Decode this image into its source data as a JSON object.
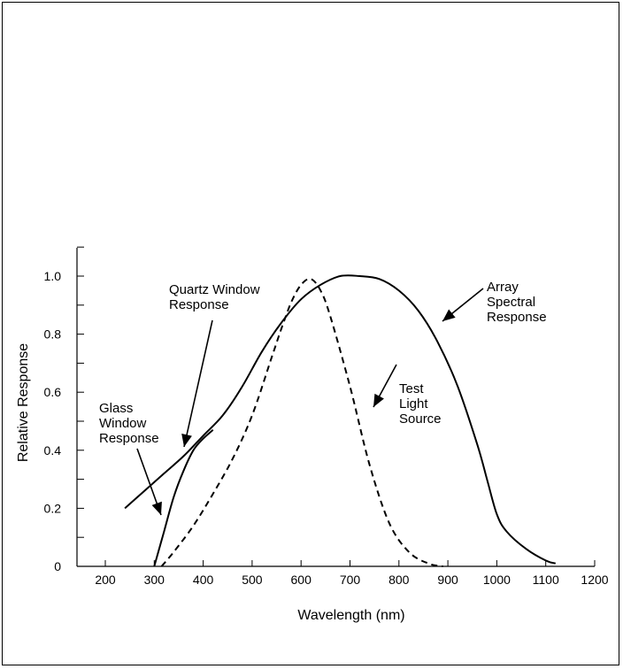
{
  "chart_data": {
    "type": "line",
    "title": "",
    "xlabel": "Wavelength (nm)",
    "ylabel": "Relative Response",
    "xlim": [
      150,
      1200
    ],
    "ylim": [
      0,
      1.1
    ],
    "x_ticks": [
      200,
      300,
      400,
      500,
      600,
      700,
      800,
      900,
      1000,
      1100,
      1200
    ],
    "y_ticks": [
      0,
      0.2,
      0.4,
      0.6,
      0.8,
      1.0
    ],
    "y_tick_labels": [
      "0",
      "0.2",
      "0.4",
      "0.6",
      "0.8",
      "1.0"
    ],
    "grid": false,
    "legend": "none",
    "series": [
      {
        "id": "quartz",
        "style": "solid",
        "x": [
          240,
          280,
          320,
          360,
          400,
          440,
          480,
          520,
          560,
          600,
          640,
          680,
          720,
          760,
          800,
          840,
          880,
          920,
          960,
          980,
          1000,
          1020,
          1060,
          1100,
          1120
        ],
        "y": [
          0.2,
          0.26,
          0.32,
          0.38,
          0.45,
          0.52,
          0.62,
          0.74,
          0.84,
          0.92,
          0.97,
          1.0,
          1.0,
          0.99,
          0.95,
          0.88,
          0.77,
          0.62,
          0.42,
          0.3,
          0.18,
          0.12,
          0.06,
          0.02,
          0.01
        ]
      },
      {
        "id": "glass",
        "style": "solid",
        "x": [
          300,
          320,
          340,
          360,
          380,
          400,
          420
        ],
        "y": [
          0.0,
          0.12,
          0.24,
          0.33,
          0.4,
          0.44,
          0.47
        ]
      },
      {
        "id": "test-light",
        "style": "dashed",
        "x": [
          315,
          340,
          380,
          420,
          460,
          500,
          540,
          560,
          580,
          600,
          620,
          640,
          660,
          700,
          740,
          780,
          820,
          860,
          890
        ],
        "y": [
          0.0,
          0.05,
          0.14,
          0.25,
          0.37,
          0.52,
          0.72,
          0.82,
          0.91,
          0.97,
          0.99,
          0.95,
          0.86,
          0.62,
          0.35,
          0.15,
          0.05,
          0.01,
          0.0
        ]
      }
    ],
    "annotations": [
      {
        "id": "quartz-window",
        "lines": [
          "Quartz Window",
          "Response"
        ],
        "target": "quartz"
      },
      {
        "id": "glass-window",
        "lines": [
          "Glass",
          "Window",
          "Response"
        ],
        "target": "glass"
      },
      {
        "id": "test-light-source",
        "lines": [
          "Test",
          "Light",
          "Source"
        ],
        "target": "test-light"
      },
      {
        "id": "array-spectral",
        "lines": [
          "Array",
          "Spectral",
          "Response"
        ],
        "target": "quartz"
      }
    ]
  }
}
